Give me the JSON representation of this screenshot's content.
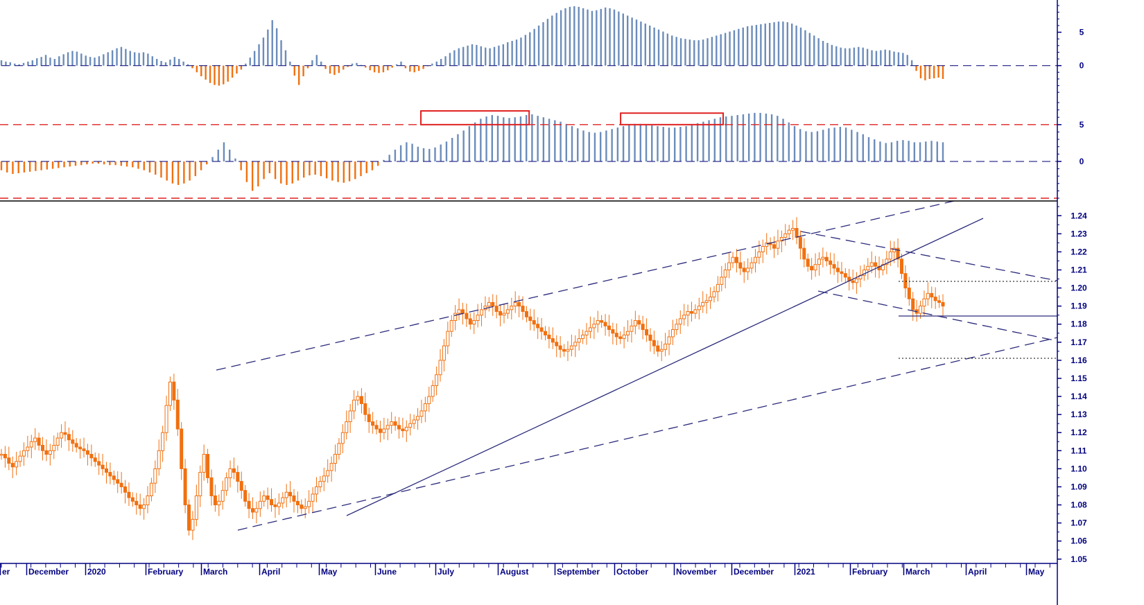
{
  "chart_data": [
    {
      "type": "bar",
      "panel": "momentum-oscillator",
      "yticks": [
        0,
        5
      ],
      "ylim": [
        -4.5,
        9
      ],
      "reference_lines": [
        0
      ],
      "positive_color": "#6b8cba",
      "negative_color": "#f07010",
      "series_values": [
        0.8,
        0.6,
        0.5,
        0.3,
        0.2,
        0.4,
        0.6,
        0.8,
        1.1,
        1.3,
        1.6,
        1.2,
        1.0,
        1.4,
        1.7,
        2.0,
        2.2,
        2.1,
        1.8,
        1.5,
        1.3,
        1.2,
        1.4,
        1.7,
        2.0,
        2.3,
        2.6,
        2.8,
        2.5,
        2.2,
        2.0,
        1.9,
        2.0,
        1.8,
        1.4,
        1.0,
        0.7,
        0.5,
        0.9,
        1.3,
        1.0,
        0.6,
        0.2,
        -0.4,
        -1.0,
        -1.6,
        -2.1,
        -2.6,
        -2.9,
        -3.0,
        -2.8,
        -2.4,
        -1.8,
        -1.2,
        -0.6,
        0.3,
        1.2,
        2.2,
        3.2,
        4.2,
        5.4,
        6.8,
        5.6,
        3.8,
        2.3,
        0.6,
        -1.5,
        -2.9,
        -1.6,
        -0.4,
        0.8,
        1.6,
        0.6,
        -0.5,
        -1.2,
        -1.4,
        -1.1,
        -0.6,
        -0.2,
        0.3,
        0.4,
        0.1,
        -0.3,
        -0.7,
        -1.0,
        -1.1,
        -1.0,
        -0.7,
        -0.3,
        0.2,
        0.6,
        -0.4,
        -0.9,
        -1.0,
        -0.8,
        -0.5,
        -0.1,
        0.3,
        0.6,
        1.0,
        1.4,
        1.9,
        2.3,
        2.6,
        2.8,
        3.0,
        3.2,
        3.1,
        2.9,
        2.7,
        2.6,
        2.8,
        3.0,
        3.2,
        3.5,
        3.7,
        3.9,
        4.2,
        4.6,
        5.0,
        5.5,
        6.0,
        6.5,
        7.0,
        7.5,
        7.9,
        8.3,
        8.6,
        8.8,
        8.9,
        8.8,
        8.6,
        8.4,
        8.2,
        8.3,
        8.5,
        8.7,
        8.6,
        8.4,
        8.1,
        7.8,
        7.5,
        7.2,
        6.9,
        6.6,
        6.3,
        6.0,
        5.7,
        5.4,
        5.1,
        4.8,
        4.5,
        4.3,
        4.1,
        4.0,
        3.9,
        3.8,
        3.8,
        3.9,
        4.1,
        4.3,
        4.5,
        4.7,
        4.9,
        5.1,
        5.3,
        5.5,
        5.7,
        5.9,
        6.0,
        6.1,
        6.2,
        6.3,
        6.4,
        6.5,
        6.6,
        6.6,
        6.5,
        6.3,
        6.0,
        5.7,
        5.3,
        4.9,
        4.5,
        4.1,
        3.7,
        3.4,
        3.1,
        2.9,
        2.7,
        2.6,
        2.6,
        2.7,
        2.8,
        2.7,
        2.5,
        2.3,
        2.2,
        2.3,
        2.4,
        2.3,
        2.1,
        2.0,
        1.9,
        1.6,
        0.8,
        -0.8,
        -1.9,
        -2.2,
        -2.0,
        -1.9,
        -1.8,
        -2.0
      ]
    },
    {
      "type": "bar",
      "panel": "trend-oscillator",
      "yticks": [
        0,
        5
      ],
      "ylim": [
        -5,
        8
      ],
      "reference_lines": [
        0,
        5,
        -5
      ],
      "highlight_boxes": [
        {
          "from_index": 74,
          "to_index": 92
        },
        {
          "from_index": 109,
          "to_index": 126
        }
      ],
      "positive_color": "#6b8cba",
      "negative_color": "#f07010",
      "series_values": [
        -1.2,
        -1.5,
        -1.7,
        -1.6,
        -1.5,
        -1.4,
        -1.3,
        -1.2,
        -1.1,
        -1.0,
        -0.9,
        -0.8,
        -0.7,
        -0.6,
        -0.5,
        -0.4,
        -0.3,
        -0.3,
        -0.4,
        -0.5,
        -0.5,
        -0.6,
        -0.7,
        -0.8,
        -1.0,
        -1.2,
        -1.5,
        -1.8,
        -2.2,
        -2.6,
        -3.0,
        -3.2,
        -3.0,
        -2.6,
        -2.0,
        -1.2,
        -0.4,
        0.6,
        1.6,
        2.6,
        1.6,
        0.4,
        -1.2,
        -2.8,
        -4.0,
        -3.4,
        -2.4,
        -1.6,
        -2.4,
        -3.0,
        -3.2,
        -3.0,
        -2.6,
        -2.2,
        -1.9,
        -1.8,
        -2.0,
        -2.3,
        -2.6,
        -2.8,
        -2.9,
        -2.7,
        -2.4,
        -2.0,
        -1.6,
        -1.2,
        -0.6,
        0.2,
        0.9,
        1.6,
        2.2,
        2.6,
        2.4,
        2.0,
        1.8,
        1.7,
        1.9,
        2.3,
        2.7,
        3.2,
        3.7,
        4.2,
        4.8,
        5.3,
        5.8,
        6.1,
        6.3,
        6.2,
        6.0,
        5.9,
        6.0,
        6.1,
        6.3,
        6.4,
        6.2,
        6.0,
        5.8,
        5.6,
        5.4,
        5.1,
        4.8,
        4.5,
        4.2,
        4.0,
        3.9,
        4.0,
        4.2,
        4.4,
        4.6,
        4.8,
        5.0,
        5.1,
        5.1,
        5.0,
        4.9,
        4.8,
        4.7,
        4.6,
        4.6,
        4.7,
        4.8,
        5.0,
        5.2,
        5.4,
        5.6,
        5.8,
        6.0,
        6.1,
        6.2,
        6.3,
        6.4,
        6.5,
        6.6,
        6.6,
        6.5,
        6.4,
        6.2,
        5.8,
        5.3,
        4.8,
        4.4,
        4.1,
        4.0,
        4.1,
        4.3,
        4.5,
        4.6,
        4.7,
        4.6,
        4.3,
        4.0,
        3.7,
        3.3,
        3.0,
        2.7,
        2.5,
        2.6,
        2.8,
        2.9,
        2.8,
        2.6,
        2.6,
        2.7,
        2.8,
        2.7,
        2.6
      ]
    },
    {
      "type": "candlestick",
      "panel": "price",
      "yticks": [
        "1.05",
        "1.06",
        "1.07",
        "1.08",
        "1.09",
        "1.10",
        "1.11",
        "1.12",
        "1.13",
        "1.14",
        "1.15",
        "1.16",
        "1.17",
        "1.18",
        "1.19",
        "1.20",
        "1.21",
        "1.22",
        "1.23",
        "1.24"
      ],
      "ylim": [
        1.048,
        1.247
      ],
      "candle_color": "#f07010",
      "close": [
        1.108,
        1.106,
        1.103,
        1.101,
        1.104,
        1.107,
        1.11,
        1.112,
        1.115,
        1.117,
        1.113,
        1.11,
        1.108,
        1.11,
        1.113,
        1.117,
        1.12,
        1.119,
        1.116,
        1.114,
        1.112,
        1.111,
        1.11,
        1.108,
        1.106,
        1.104,
        1.102,
        1.1,
        1.098,
        1.096,
        1.094,
        1.092,
        1.09,
        1.087,
        1.084,
        1.082,
        1.08,
        1.078,
        1.08,
        1.085,
        1.092,
        1.1,
        1.11,
        1.12,
        1.135,
        1.148,
        1.138,
        1.122,
        1.1,
        1.08,
        1.066,
        1.072,
        1.085,
        1.098,
        1.108,
        1.095,
        1.085,
        1.08,
        1.082,
        1.088,
        1.095,
        1.1,
        1.098,
        1.093,
        1.088,
        1.082,
        1.078,
        1.076,
        1.078,
        1.082,
        1.085,
        1.083,
        1.08,
        1.079,
        1.081,
        1.084,
        1.087,
        1.085,
        1.082,
        1.08,
        1.078,
        1.079,
        1.082,
        1.086,
        1.09,
        1.093,
        1.096,
        1.099,
        1.103,
        1.108,
        1.114,
        1.12,
        1.126,
        1.132,
        1.138,
        1.14,
        1.136,
        1.13,
        1.126,
        1.124,
        1.122,
        1.12,
        1.122,
        1.124,
        1.126,
        1.124,
        1.122,
        1.121,
        1.123,
        1.125,
        1.127,
        1.129,
        1.132,
        1.136,
        1.14,
        1.146,
        1.152,
        1.16,
        1.168,
        1.176,
        1.182,
        1.186,
        1.188,
        1.186,
        1.183,
        1.18,
        1.182,
        1.185,
        1.188,
        1.19,
        1.192,
        1.19,
        1.187,
        1.185,
        1.186,
        1.188,
        1.19,
        1.192,
        1.19,
        1.187,
        1.184,
        1.182,
        1.18,
        1.178,
        1.176,
        1.174,
        1.172,
        1.17,
        1.168,
        1.166,
        1.165,
        1.166,
        1.168,
        1.17,
        1.172,
        1.174,
        1.176,
        1.178,
        1.18,
        1.182,
        1.181,
        1.179,
        1.177,
        1.175,
        1.173,
        1.172,
        1.174,
        1.176,
        1.179,
        1.182,
        1.18,
        1.177,
        1.174,
        1.171,
        1.168,
        1.165,
        1.166,
        1.169,
        1.173,
        1.177,
        1.18,
        1.183,
        1.185,
        1.187,
        1.186,
        1.188,
        1.19,
        1.192,
        1.193,
        1.195,
        1.198,
        1.202,
        1.206,
        1.21,
        1.214,
        1.217,
        1.214,
        1.211,
        1.209,
        1.211,
        1.214,
        1.217,
        1.22,
        1.223,
        1.225,
        1.224,
        1.222,
        1.226,
        1.228,
        1.23,
        1.232,
        1.233,
        1.228,
        1.222,
        1.216,
        1.212,
        1.21,
        1.213,
        1.216,
        1.217,
        1.215,
        1.213,
        1.211,
        1.209,
        1.208,
        1.206,
        1.204,
        1.203,
        1.205,
        1.207,
        1.21,
        1.212,
        1.214,
        1.212,
        1.21,
        1.213,
        1.216,
        1.22,
        1.222,
        1.216,
        1.208,
        1.2,
        1.194,
        1.188,
        1.186,
        1.19,
        1.194,
        1.197,
        1.195,
        1.193,
        1.192,
        1.19
      ]
    }
  ],
  "x_axis": {
    "months": [
      "er",
      "December",
      "2020",
      "February",
      "March",
      "April",
      "May",
      "June",
      "July",
      "August",
      "September",
      "October",
      "November",
      "December",
      "2021",
      "February",
      "March",
      "April",
      "May"
    ]
  },
  "colors": {
    "axis": "#000080",
    "trendline": "#2a2a7a",
    "red_reference": "#e02020",
    "highlight_box": "#e02020",
    "positive_bar": "#6b8cba",
    "negative_bar": "#f07010",
    "candle": "#f07010"
  }
}
